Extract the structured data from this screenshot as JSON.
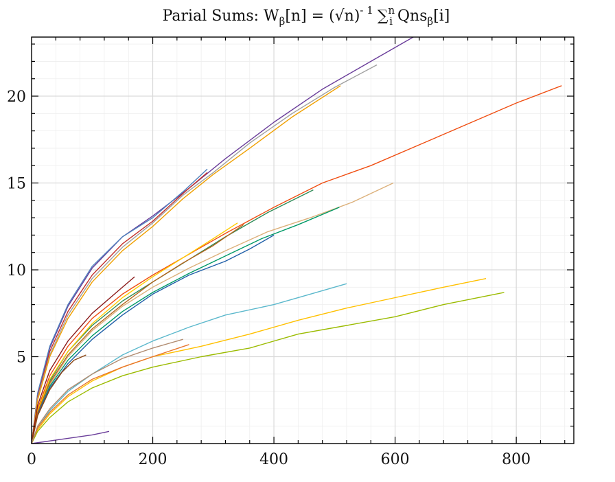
{
  "chart_data": {
    "type": "line",
    "title": "Parial Sums: Wβ[n] = (√n)⁻¹ Σᵢⁿ Qnsβ[i]",
    "title_parts": {
      "main": "Parial Sums: W",
      "beta": "β",
      "mid1": "[n] = (√n)",
      "exp": "- 1",
      "sum": "∑",
      "sup": "n",
      "sub": "i",
      "mid2": " Qns",
      "end": "[i]"
    },
    "xlabel": "",
    "ylabel": "",
    "xlim": [
      0,
      895
    ],
    "ylim": [
      0,
      23.4
    ],
    "x_ticks": [
      0,
      200,
      400,
      600,
      800
    ],
    "y_ticks": [
      5,
      10,
      15,
      20
    ],
    "x_minor_step": 40,
    "y_minor_step": 1,
    "grid": true,
    "legend": "none",
    "series": [
      {
        "color": "#6a3d9a",
        "values": [
          [
            0,
            0
          ],
          [
            10,
            2.8
          ],
          [
            30,
            5.5
          ],
          [
            60,
            7.9
          ],
          [
            100,
            10.1
          ],
          [
            150,
            11.9
          ],
          [
            200,
            13.1
          ],
          [
            260,
            14.7
          ],
          [
            320,
            16.4
          ],
          [
            400,
            18.5
          ],
          [
            480,
            20.4
          ],
          [
            560,
            22.0
          ],
          [
            630,
            23.4
          ]
        ]
      },
      {
        "color": "#4f81bd",
        "values": [
          [
            0,
            0
          ],
          [
            10,
            2.9
          ],
          [
            30,
            5.6
          ],
          [
            60,
            8.0
          ],
          [
            100,
            10.2
          ],
          [
            150,
            11.9
          ],
          [
            200,
            13.0
          ],
          [
            250,
            14.5
          ],
          [
            290,
            15.8
          ]
        ]
      },
      {
        "color": "#c4302b",
        "values": [
          [
            0,
            0
          ],
          [
            10,
            2.7
          ],
          [
            30,
            5.3
          ],
          [
            60,
            7.6
          ],
          [
            100,
            9.7
          ],
          [
            150,
            11.5
          ],
          [
            200,
            12.8
          ],
          [
            250,
            14.4
          ],
          [
            290,
            15.6
          ]
        ]
      },
      {
        "color": "#a0a0a0",
        "values": [
          [
            0,
            0
          ],
          [
            10,
            2.6
          ],
          [
            30,
            5.1
          ],
          [
            60,
            7.4
          ],
          [
            100,
            9.5
          ],
          [
            150,
            11.3
          ],
          [
            200,
            12.7
          ],
          [
            250,
            14.3
          ],
          [
            300,
            15.6
          ],
          [
            360,
            17.3
          ],
          [
            430,
            19.0
          ],
          [
            500,
            20.5
          ],
          [
            570,
            21.8
          ]
        ]
      },
      {
        "color": "#f0a000",
        "values": [
          [
            0,
            0
          ],
          [
            10,
            2.5
          ],
          [
            30,
            5.0
          ],
          [
            60,
            7.2
          ],
          [
            100,
            9.3
          ],
          [
            150,
            11.1
          ],
          [
            200,
            12.5
          ],
          [
            250,
            14.1
          ],
          [
            300,
            15.5
          ],
          [
            360,
            17.0
          ],
          [
            430,
            18.8
          ],
          [
            510,
            20.6
          ]
        ]
      },
      {
        "color": "#f04e12",
        "values": [
          [
            0,
            0
          ],
          [
            10,
            2.0
          ],
          [
            30,
            3.9
          ],
          [
            60,
            5.6
          ],
          [
            100,
            7.2
          ],
          [
            150,
            8.6
          ],
          [
            200,
            9.7
          ],
          [
            260,
            10.9
          ],
          [
            320,
            12.1
          ],
          [
            400,
            13.6
          ],
          [
            480,
            15.0
          ],
          [
            560,
            16.0
          ],
          [
            640,
            17.2
          ],
          [
            720,
            18.4
          ],
          [
            800,
            19.6
          ],
          [
            875,
            20.6
          ]
        ]
      },
      {
        "color": "#2e8b57",
        "values": [
          [
            0,
            0
          ],
          [
            10,
            1.9
          ],
          [
            30,
            3.6
          ],
          [
            60,
            5.3
          ],
          [
            100,
            6.8
          ],
          [
            150,
            8.2
          ],
          [
            200,
            9.3
          ],
          [
            260,
            10.6
          ],
          [
            320,
            11.9
          ],
          [
            390,
            13.3
          ],
          [
            465,
            14.6
          ]
        ]
      },
      {
        "color": "#dcb07a",
        "values": [
          [
            0,
            0
          ],
          [
            10,
            1.8
          ],
          [
            30,
            3.4
          ],
          [
            60,
            5.0
          ],
          [
            100,
            6.5
          ],
          [
            150,
            7.9
          ],
          [
            200,
            9.0
          ],
          [
            260,
            10.1
          ],
          [
            320,
            11.1
          ],
          [
            390,
            12.2
          ],
          [
            460,
            13.0
          ],
          [
            530,
            13.9
          ],
          [
            597,
            15.0
          ]
        ]
      },
      {
        "color": "#009966",
        "values": [
          [
            0,
            0
          ],
          [
            10,
            1.7
          ],
          [
            30,
            3.3
          ],
          [
            60,
            4.8
          ],
          [
            100,
            6.2
          ],
          [
            150,
            7.6
          ],
          [
            200,
            8.7
          ],
          [
            260,
            9.8
          ],
          [
            320,
            10.8
          ],
          [
            380,
            11.8
          ],
          [
            440,
            12.6
          ],
          [
            508,
            13.6
          ]
        ]
      },
      {
        "color": "#1f5fa8",
        "values": [
          [
            0,
            0
          ],
          [
            10,
            1.7
          ],
          [
            30,
            3.2
          ],
          [
            60,
            4.6
          ],
          [
            100,
            6.0
          ],
          [
            150,
            7.4
          ],
          [
            200,
            8.6
          ],
          [
            260,
            9.7
          ],
          [
            320,
            10.5
          ],
          [
            360,
            11.2
          ],
          [
            400,
            12.0
          ]
        ]
      },
      {
        "color": "#ffcc00",
        "values": [
          [
            0,
            0
          ],
          [
            10,
            1.9
          ],
          [
            30,
            3.7
          ],
          [
            60,
            5.3
          ],
          [
            100,
            6.9
          ],
          [
            150,
            8.4
          ],
          [
            200,
            9.6
          ],
          [
            250,
            10.7
          ],
          [
            300,
            11.8
          ],
          [
            340,
            12.7
          ]
        ]
      },
      {
        "color": "#b5651d",
        "values": [
          [
            0,
            0
          ],
          [
            10,
            1.8
          ],
          [
            30,
            3.5
          ],
          [
            60,
            5.1
          ],
          [
            100,
            6.6
          ],
          [
            150,
            8.0
          ],
          [
            200,
            9.3
          ],
          [
            250,
            10.4
          ],
          [
            300,
            11.4
          ],
          [
            350,
            12.6
          ]
        ]
      },
      {
        "color": "#8b1a1a",
        "values": [
          [
            0,
            0
          ],
          [
            10,
            2.2
          ],
          [
            30,
            4.2
          ],
          [
            60,
            5.9
          ],
          [
            100,
            7.5
          ],
          [
            140,
            8.7
          ],
          [
            170,
            9.6
          ]
        ]
      },
      {
        "color": "#8b4513",
        "values": [
          [
            0,
            0
          ],
          [
            10,
            1.6
          ],
          [
            30,
            3.1
          ],
          [
            50,
            4.1
          ],
          [
            70,
            4.8
          ],
          [
            90,
            5.1
          ]
        ]
      },
      {
        "color": "#5bb8cc",
        "values": [
          [
            0,
            0
          ],
          [
            10,
            0.9
          ],
          [
            30,
            1.9
          ],
          [
            60,
            3.0
          ],
          [
            100,
            4.0
          ],
          [
            150,
            5.1
          ],
          [
            200,
            5.9
          ],
          [
            260,
            6.7
          ],
          [
            320,
            7.4
          ],
          [
            400,
            8.0
          ],
          [
            460,
            8.6
          ],
          [
            520,
            9.2
          ]
        ]
      },
      {
        "color": "#ffc000",
        "values": [
          [
            0,
            0
          ],
          [
            10,
            0.8
          ],
          [
            30,
            1.7
          ],
          [
            60,
            2.7
          ],
          [
            100,
            3.6
          ],
          [
            150,
            4.4
          ],
          [
            200,
            5.0
          ],
          [
            280,
            5.6
          ],
          [
            360,
            6.3
          ],
          [
            440,
            7.1
          ],
          [
            520,
            7.8
          ],
          [
            600,
            8.4
          ],
          [
            680,
            9.0
          ],
          [
            750,
            9.5
          ]
        ]
      },
      {
        "color": "#9bbb00",
        "values": [
          [
            0,
            0
          ],
          [
            10,
            0.7
          ],
          [
            30,
            1.5
          ],
          [
            60,
            2.4
          ],
          [
            100,
            3.2
          ],
          [
            150,
            3.9
          ],
          [
            200,
            4.4
          ],
          [
            280,
            5.0
          ],
          [
            360,
            5.5
          ],
          [
            440,
            6.3
          ],
          [
            520,
            6.8
          ],
          [
            600,
            7.3
          ],
          [
            680,
            8.0
          ],
          [
            780,
            8.7
          ]
        ]
      },
      {
        "color": "#e8742c",
        "values": [
          [
            0,
            0
          ],
          [
            10,
            0.9
          ],
          [
            30,
            1.8
          ],
          [
            60,
            2.8
          ],
          [
            100,
            3.7
          ],
          [
            150,
            4.4
          ],
          [
            200,
            5.0
          ],
          [
            260,
            5.7
          ]
        ]
      },
      {
        "color": "#b08b70",
        "values": [
          [
            0,
            0
          ],
          [
            10,
            1.0
          ],
          [
            30,
            2.0
          ],
          [
            60,
            3.1
          ],
          [
            100,
            4.0
          ],
          [
            150,
            4.9
          ],
          [
            200,
            5.5
          ],
          [
            250,
            6.0
          ]
        ]
      },
      {
        "color": "#6a3d9a",
        "values": [
          [
            0,
            0
          ],
          [
            20,
            0.1
          ],
          [
            40,
            0.2
          ],
          [
            60,
            0.3
          ],
          [
            80,
            0.4
          ],
          [
            100,
            0.5
          ],
          [
            128,
            0.7
          ]
        ]
      }
    ]
  }
}
